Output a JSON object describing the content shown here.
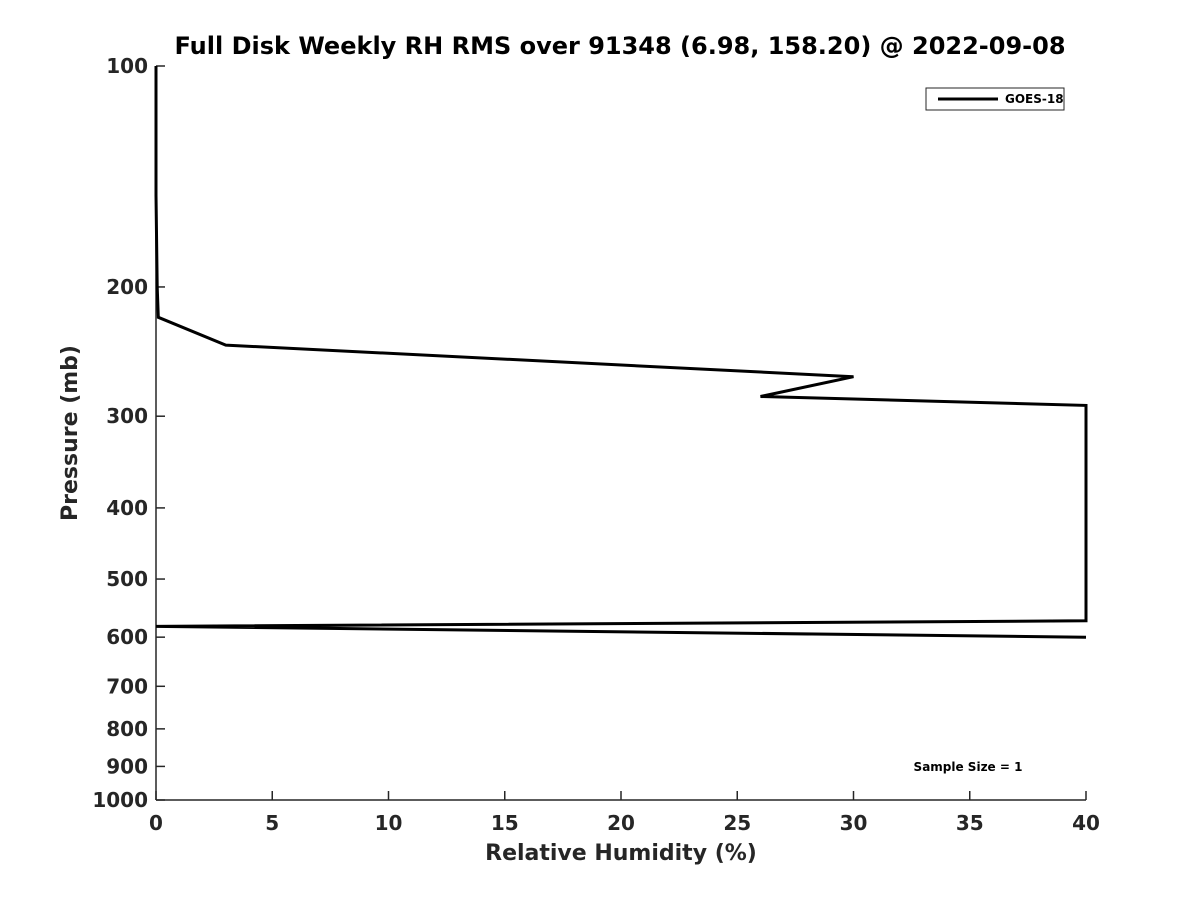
{
  "chart_data": {
    "type": "line",
    "title": "Full Disk Weekly RH RMS over 91348 (6.98, 158.20) @ 2022-09-08",
    "xlabel": "Relative Humidity (%)",
    "ylabel": "Pressure (mb)",
    "xlim": [
      0,
      40
    ],
    "ylim": [
      100,
      1000
    ],
    "yscale": "log",
    "grid": false,
    "x_ticks": [
      0,
      5,
      10,
      15,
      20,
      25,
      30,
      35,
      40
    ],
    "y_ticks": [
      100,
      200,
      300,
      400,
      500,
      600,
      700,
      800,
      900,
      1000
    ],
    "legend_position": "top-right",
    "series": [
      {
        "name": "GOES-18",
        "color": "#000000",
        "points": [
          {
            "x": 0.0,
            "p": 100
          },
          {
            "x": 0.0,
            "p": 150
          },
          {
            "x": 0.05,
            "p": 200
          },
          {
            "x": 0.1,
            "p": 220
          },
          {
            "x": 3.0,
            "p": 240
          },
          {
            "x": 30.0,
            "p": 265
          },
          {
            "x": 26.0,
            "p": 282
          },
          {
            "x": 40.0,
            "p": 290
          },
          {
            "x": 40.0,
            "p": 570
          },
          {
            "x": 0.0,
            "p": 580
          },
          {
            "x": 40.0,
            "p": 600
          }
        ]
      }
    ],
    "annotations": [
      "Sample Size = 1"
    ]
  }
}
